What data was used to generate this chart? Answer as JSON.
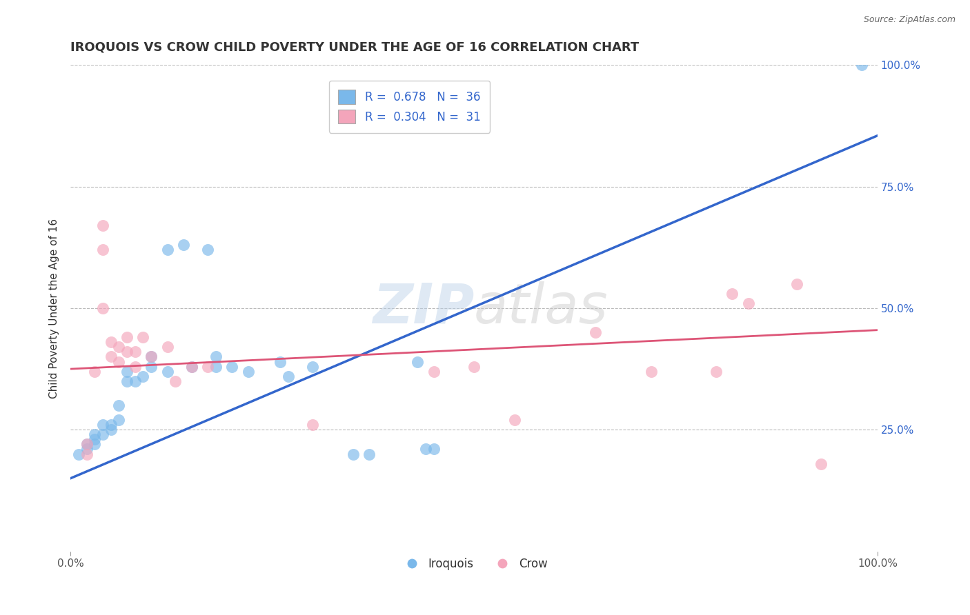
{
  "title": "IROQUOIS VS CROW CHILD POVERTY UNDER THE AGE OF 16 CORRELATION CHART",
  "source": "Source: ZipAtlas.com",
  "ylabel": "Child Poverty Under the Age of 16",
  "xlabel": "",
  "xlim": [
    0,
    1
  ],
  "ylim": [
    0,
    1
  ],
  "watermark": "ZIPatlas",
  "legend_blue_label": "R =  0.678   N =  36",
  "legend_pink_label": "R =  0.304   N =  31",
  "blue_scatter_color": "#7ab8ea",
  "pink_scatter_color": "#f4a5bb",
  "blue_line_color": "#3366cc",
  "pink_line_color": "#dd5577",
  "iroquois_points": [
    [
      0.01,
      0.2
    ],
    [
      0.02,
      0.21
    ],
    [
      0.02,
      0.22
    ],
    [
      0.03,
      0.22
    ],
    [
      0.03,
      0.23
    ],
    [
      0.03,
      0.24
    ],
    [
      0.04,
      0.24
    ],
    [
      0.04,
      0.26
    ],
    [
      0.05,
      0.25
    ],
    [
      0.05,
      0.26
    ],
    [
      0.06,
      0.27
    ],
    [
      0.06,
      0.3
    ],
    [
      0.07,
      0.35
    ],
    [
      0.07,
      0.37
    ],
    [
      0.08,
      0.35
    ],
    [
      0.09,
      0.36
    ],
    [
      0.1,
      0.38
    ],
    [
      0.1,
      0.4
    ],
    [
      0.12,
      0.37
    ],
    [
      0.12,
      0.62
    ],
    [
      0.14,
      0.63
    ],
    [
      0.15,
      0.38
    ],
    [
      0.17,
      0.62
    ],
    [
      0.18,
      0.38
    ],
    [
      0.18,
      0.4
    ],
    [
      0.2,
      0.38
    ],
    [
      0.22,
      0.37
    ],
    [
      0.26,
      0.39
    ],
    [
      0.27,
      0.36
    ],
    [
      0.3,
      0.38
    ],
    [
      0.35,
      0.2
    ],
    [
      0.37,
      0.2
    ],
    [
      0.43,
      0.39
    ],
    [
      0.44,
      0.21
    ],
    [
      0.45,
      0.21
    ],
    [
      0.98,
      1.0
    ]
  ],
  "crow_points": [
    [
      0.02,
      0.2
    ],
    [
      0.02,
      0.22
    ],
    [
      0.03,
      0.37
    ],
    [
      0.04,
      0.5
    ],
    [
      0.04,
      0.62
    ],
    [
      0.04,
      0.67
    ],
    [
      0.05,
      0.4
    ],
    [
      0.05,
      0.43
    ],
    [
      0.06,
      0.39
    ],
    [
      0.06,
      0.42
    ],
    [
      0.07,
      0.41
    ],
    [
      0.07,
      0.44
    ],
    [
      0.08,
      0.38
    ],
    [
      0.08,
      0.41
    ],
    [
      0.09,
      0.44
    ],
    [
      0.1,
      0.4
    ],
    [
      0.12,
      0.42
    ],
    [
      0.13,
      0.35
    ],
    [
      0.15,
      0.38
    ],
    [
      0.17,
      0.38
    ],
    [
      0.3,
      0.26
    ],
    [
      0.45,
      0.37
    ],
    [
      0.5,
      0.38
    ],
    [
      0.55,
      0.27
    ],
    [
      0.65,
      0.45
    ],
    [
      0.72,
      0.37
    ],
    [
      0.8,
      0.37
    ],
    [
      0.82,
      0.53
    ],
    [
      0.84,
      0.51
    ],
    [
      0.9,
      0.55
    ],
    [
      0.93,
      0.18
    ]
  ],
  "blue_line_x": [
    0.0,
    1.0
  ],
  "blue_line_y": [
    0.15,
    0.855
  ],
  "pink_line_x": [
    0.0,
    1.0
  ],
  "pink_line_y": [
    0.375,
    0.455
  ],
  "background_color": "#ffffff",
  "grid_color": "#bbbbbb",
  "title_fontsize": 13,
  "axis_label_fontsize": 11,
  "tick_fontsize": 11,
  "right_tick_color": "#3366cc"
}
